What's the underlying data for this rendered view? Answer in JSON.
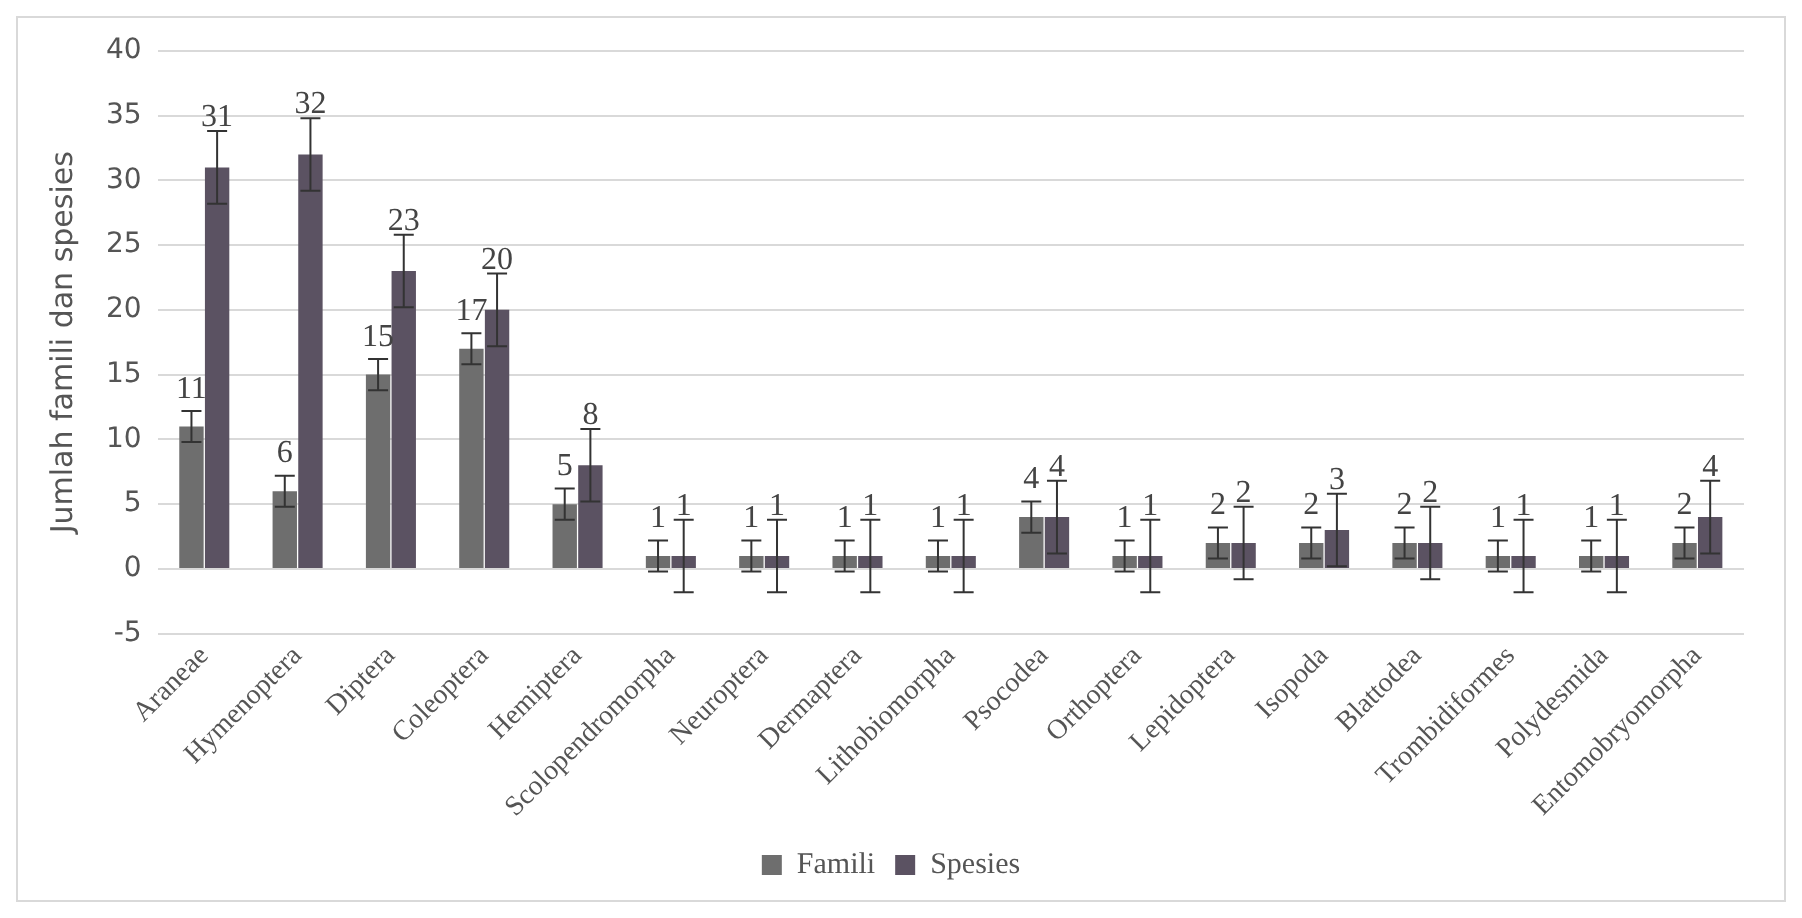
{
  "chart_data": {
    "type": "bar",
    "ylabel": "Jumlah famili dan spesies",
    "categories": [
      "Araneae",
      "Hymenoptera",
      "Diptera",
      "Coleoptera",
      "Hemiptera",
      "Scolopendromorpha",
      "Neuroptera",
      "Dermaptera",
      "Lithobiomorpha",
      "Psocodea",
      "Orthoptera",
      "Lepidoptera",
      "Isopoda",
      "Blattodea",
      "Trombidiformes",
      "Polydesmida",
      "Entomobryomorpha"
    ],
    "series": [
      {
        "name": "Famili",
        "color": "#6e6e6e",
        "values": [
          11,
          6,
          15,
          17,
          5,
          1,
          1,
          1,
          1,
          4,
          1,
          2,
          2,
          2,
          1,
          1,
          2
        ],
        "errors": [
          1.2,
          1.2,
          1.2,
          1.2,
          1.2,
          1.2,
          1.2,
          1.2,
          1.2,
          1.2,
          1.2,
          1.2,
          1.2,
          1.2,
          1.2,
          1.2,
          1.2
        ]
      },
      {
        "name": "Spesies",
        "color": "#5b5262",
        "values": [
          31,
          32,
          23,
          20,
          8,
          1,
          1,
          1,
          1,
          4,
          1,
          2,
          3,
          2,
          1,
          1,
          4
        ],
        "errors": [
          2.8,
          2.8,
          2.8,
          2.8,
          2.8,
          2.8,
          2.8,
          2.8,
          2.8,
          2.8,
          2.8,
          2.8,
          2.8,
          2.8,
          2.8,
          2.8,
          2.8
        ]
      }
    ],
    "ylim": [
      -5,
      40
    ],
    "yticks": [
      -5,
      0,
      5,
      10,
      15,
      20,
      25,
      30,
      35,
      40
    ],
    "grid": "y",
    "legend": "bottom",
    "data_labels": true
  }
}
